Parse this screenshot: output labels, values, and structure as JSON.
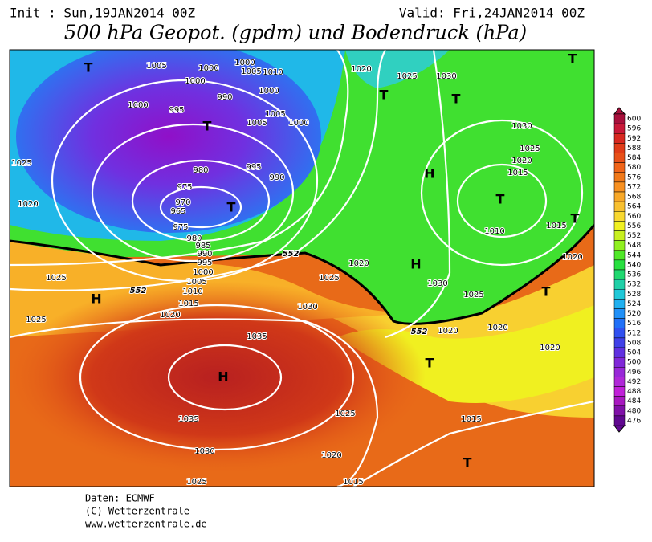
{
  "header": {
    "init": "Init : Sun,19JAN2014 00Z",
    "valid": "Valid: Fri,24JAN2014 00Z",
    "title": "500 hPa Geopot. (gpdm) und Bodendruck (hPa)"
  },
  "map_labels": [
    "T",
    "1005",
    "1000",
    "1000",
    "1000",
    "1005",
    "1010",
    "1000",
    "990",
    "1000",
    "995",
    "T",
    "1005",
    "1005",
    "1000",
    "1025",
    "980",
    "995",
    "990",
    "975",
    "970",
    "T",
    "965",
    "975",
    "980",
    "985",
    "990",
    "995",
    "1000",
    "1005",
    "1010",
    "1015",
    "1020",
    "1020",
    "1025",
    "H",
    "1025",
    "1030",
    "1025",
    "1020",
    "552",
    "552",
    "1020",
    "T",
    "1025",
    "1030",
    "T",
    "H",
    "H",
    "1030",
    "1025",
    "1020",
    "552",
    "1020",
    "T",
    "1020",
    "T",
    "T",
    "1010",
    "1015",
    "1020",
    "1030",
    "1025",
    "1020",
    "1015",
    "T",
    "T",
    "1035",
    "H",
    "1035",
    "1030",
    "1025",
    "1025",
    "1020",
    "1015",
    "1015",
    "T"
  ],
  "colorbar": {
    "ticks": [
      "600",
      "596",
      "592",
      "588",
      "584",
      "580",
      "576",
      "572",
      "568",
      "564",
      "560",
      "556",
      "552",
      "548",
      "544",
      "540",
      "536",
      "532",
      "528",
      "524",
      "520",
      "516",
      "512",
      "508",
      "504",
      "500",
      "496",
      "492",
      "488",
      "484",
      "480",
      "476"
    ],
    "colors": [
      "#a8103c",
      "#c81838",
      "#d82820",
      "#e03c18",
      "#e85018",
      "#f06418",
      "#f07818",
      "#f89020",
      "#f8a828",
      "#f8c030",
      "#f8d830",
      "#f0f020",
      "#c8f020",
      "#90f020",
      "#50e828",
      "#28e040",
      "#20d870",
      "#20d0a8",
      "#20c8d8",
      "#20b0f0",
      "#2090f8",
      "#2070f8",
      "#3050f0",
      "#4040e8",
      "#6030e0",
      "#8028d8",
      "#9828d8",
      "#b028d8",
      "#c020d8",
      "#a818c0",
      "#8010a8",
      "#600890"
    ]
  },
  "footer": {
    "source": "Daten: ECMWF",
    "copyright": "(C) Wetterzentrale",
    "url": "www.wetterzentrale.de"
  }
}
